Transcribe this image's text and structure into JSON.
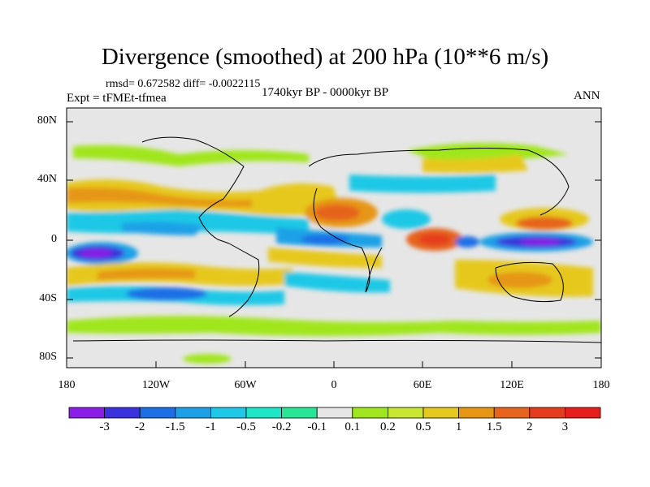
{
  "title": "Divergence (smoothed) at 200 hPa (10**6 m/s)",
  "stats": "rmsd= 0.672582 diff= -0.0022115",
  "experiment": "Expt = tFMEt-tfmea",
  "period": "1740kyr BP - 0000kyr BP",
  "season": "ANN",
  "y_axis": {
    "ticks": [
      "80N",
      "40N",
      "0",
      "40S",
      "80S"
    ]
  },
  "x_axis": {
    "ticks": [
      "180",
      "120W",
      "60W",
      "0",
      "60E",
      "120E",
      "180"
    ]
  },
  "colorbar": {
    "labels": [
      "-3",
      "-2",
      "-1.5",
      "-1",
      "-0.5",
      "-0.2",
      "-0.1",
      "0.1",
      "0.2",
      "0.5",
      "1",
      "1.5",
      "2",
      "3"
    ],
    "colors": [
      "#8a1ee6",
      "#3a32dc",
      "#1e6ee6",
      "#1ea0e6",
      "#1ec8e6",
      "#1ee6c8",
      "#28e696",
      "#e6e6e6",
      "#a0e61e",
      "#c8e632",
      "#e6c81e",
      "#e69614",
      "#e6641e",
      "#e63c1e",
      "#e61e1e"
    ]
  },
  "colors": {
    "background_land_ocean": "#e6e6e6",
    "coastline": "#000000"
  }
}
